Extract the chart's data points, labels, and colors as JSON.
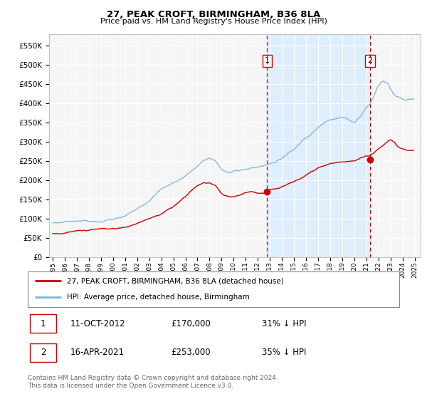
{
  "title": "27, PEAK CROFT, BIRMINGHAM, B36 8LA",
  "subtitle": "Price paid vs. HM Land Registry's House Price Index (HPI)",
  "legend_line1": "27, PEAK CROFT, BIRMINGHAM, B36 8LA (detached house)",
  "legend_line2": "HPI: Average price, detached house, Birmingham",
  "table_row1": [
    "1",
    "11-OCT-2012",
    "£170,000",
    "31% ↓ HPI"
  ],
  "table_row2": [
    "2",
    "16-APR-2021",
    "£253,000",
    "35% ↓ HPI"
  ],
  "footnote1": "Contains HM Land Registry data © Crown copyright and database right 2024.",
  "footnote2": "This data is licensed under the Open Government Licence v3.0.",
  "sale1_date": 2012.78,
  "sale2_date": 2021.29,
  "hpi_color": "#7ab5d8",
  "price_color": "#cc0000",
  "vline_color": "#cc0000",
  "shade_color": "#ddeeff",
  "ylim_min": 0,
  "ylim_max": 580000,
  "xlim_start": 1994.7,
  "xlim_end": 2025.5,
  "yticks": [
    0,
    50000,
    100000,
    150000,
    200000,
    250000,
    300000,
    350000,
    400000,
    450000,
    500000,
    550000
  ],
  "xtick_years": [
    1995,
    1996,
    1997,
    1998,
    1999,
    2000,
    2001,
    2002,
    2003,
    2004,
    2005,
    2006,
    2007,
    2008,
    2009,
    2010,
    2011,
    2012,
    2013,
    2014,
    2015,
    2016,
    2017,
    2018,
    2019,
    2020,
    2021,
    2022,
    2023,
    2024,
    2025
  ],
  "fig_width": 6.0,
  "fig_height": 5.6,
  "dpi": 100,
  "hpi_waypoints_x": [
    1995.0,
    1995.5,
    1996.0,
    1997.0,
    1998.0,
    1999.0,
    2000.0,
    2001.0,
    2002.0,
    2003.0,
    2003.5,
    2004.0,
    2005.0,
    2006.0,
    2007.0,
    2007.5,
    2008.0,
    2008.5,
    2009.0,
    2009.5,
    2010.0,
    2010.5,
    2011.0,
    2011.5,
    2012.0,
    2012.5,
    2013.0,
    2013.5,
    2014.0,
    2014.5,
    2015.0,
    2015.5,
    2016.0,
    2016.5,
    2017.0,
    2017.5,
    2018.0,
    2018.5,
    2019.0,
    2019.5,
    2020.0,
    2020.5,
    2021.0,
    2021.3,
    2021.5,
    2021.8,
    2022.0,
    2022.3,
    2022.6,
    2022.8,
    2023.0,
    2023.3,
    2023.6,
    2024.0,
    2024.3,
    2024.6,
    2024.9
  ],
  "hpi_waypoints_y": [
    88000,
    90000,
    93000,
    96000,
    98000,
    101000,
    107000,
    113000,
    130000,
    155000,
    170000,
    185000,
    200000,
    218000,
    245000,
    258000,
    265000,
    258000,
    235000,
    228000,
    232000,
    235000,
    240000,
    242000,
    243000,
    245000,
    248000,
    253000,
    262000,
    272000,
    282000,
    293000,
    305000,
    318000,
    330000,
    342000,
    348000,
    352000,
    352000,
    348000,
    340000,
    358000,
    380000,
    390000,
    405000,
    425000,
    440000,
    452000,
    448000,
    445000,
    432000,
    418000,
    412000,
    408000,
    405000,
    408000,
    410000
  ],
  "price_waypoints_x": [
    1995.0,
    1996.0,
    1997.0,
    1998.0,
    1999.0,
    2000.0,
    2001.0,
    2002.0,
    2003.0,
    2004.0,
    2005.0,
    2006.0,
    2006.5,
    2007.0,
    2007.5,
    2008.0,
    2008.5,
    2009.0,
    2009.5,
    2010.0,
    2010.5,
    2011.0,
    2011.5,
    2012.0,
    2012.5,
    2012.78,
    2013.0,
    2013.5,
    2014.0,
    2014.5,
    2015.0,
    2015.5,
    2016.0,
    2016.5,
    2017.0,
    2017.5,
    2018.0,
    2018.5,
    2019.0,
    2019.5,
    2020.0,
    2020.5,
    2021.0,
    2021.29,
    2021.5,
    2022.0,
    2022.5,
    2022.8,
    2023.0,
    2023.3,
    2023.6,
    2024.0,
    2024.3,
    2024.6,
    2024.9
  ],
  "price_waypoints_y": [
    62000,
    64000,
    67000,
    69000,
    72000,
    76000,
    80000,
    90000,
    102000,
    112000,
    130000,
    155000,
    170000,
    182000,
    190000,
    188000,
    180000,
    160000,
    153000,
    154000,
    158000,
    165000,
    168000,
    166000,
    163000,
    170000,
    172000,
    175000,
    180000,
    186000,
    192000,
    200000,
    208000,
    218000,
    226000,
    232000,
    236000,
    238000,
    238000,
    240000,
    242000,
    248000,
    252000,
    253000,
    258000,
    272000,
    285000,
    292000,
    295000,
    290000,
    278000,
    272000,
    268000,
    268000,
    268000
  ]
}
